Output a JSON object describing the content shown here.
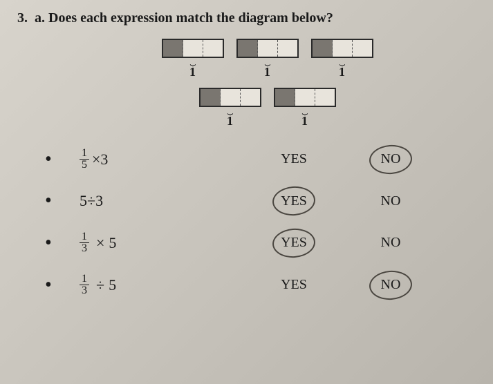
{
  "question": {
    "number": "3.",
    "part": "a.",
    "text": "Does each expression match the diagram below?"
  },
  "diagram": {
    "row1_units": 3,
    "row2_units": 2,
    "cells_per_unit": 3,
    "unit_label": "1"
  },
  "options": [
    {
      "frac_num": "1",
      "frac_den": "5",
      "op": "×",
      "val": "3",
      "yes": "YES",
      "no": "NO",
      "yes_circled": false,
      "no_circled": true
    },
    {
      "plain": "5÷3",
      "yes": "YES",
      "no": "NO",
      "yes_circled": true,
      "no_circled": false
    },
    {
      "frac_num": "1",
      "frac_den": "3",
      "op": "×",
      "val": "5",
      "yes": "YES",
      "no": "NO",
      "yes_circled": true,
      "no_circled": false
    },
    {
      "frac_num": "1",
      "frac_den": "3",
      "op": "÷",
      "val": "5",
      "yes": "YES",
      "no": "NO",
      "yes_circled": false,
      "no_circled": true
    }
  ],
  "colors": {
    "bg_start": "#d8d4cc",
    "bg_end": "#b8b4ac",
    "text": "#1a1a1a",
    "box_border": "#2a2a2a",
    "shaded": "#7a7670",
    "circle": "#4a4640"
  },
  "type": "document-worksheet"
}
